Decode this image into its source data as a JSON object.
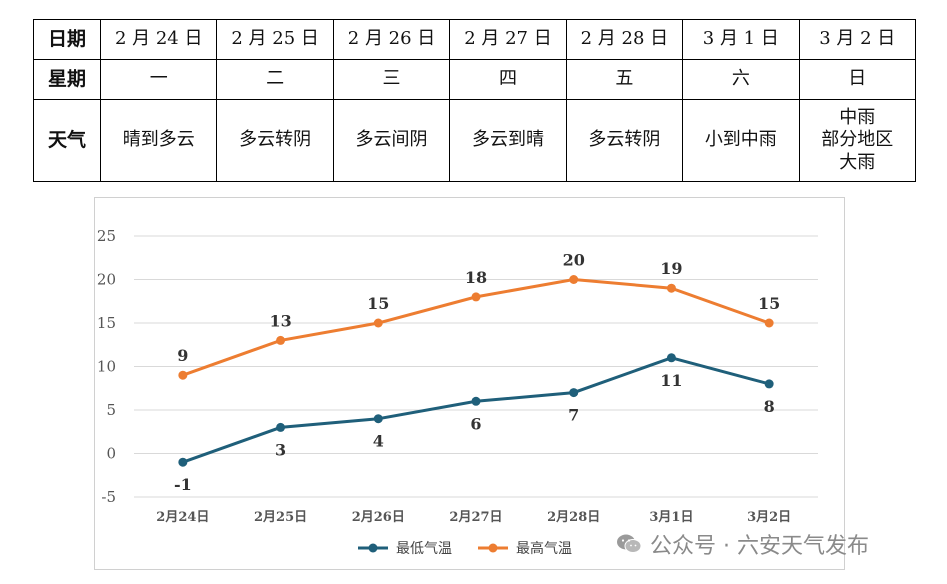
{
  "table": {
    "row_headers": [
      "日期",
      "星期",
      "天气"
    ],
    "dates": [
      "2 月 24 日",
      "2 月 25 日",
      "2 月 26 日",
      "2 月 27 日",
      "2 月 28 日",
      "3 月 1 日",
      "3 月 2 日"
    ],
    "weekdays": [
      "一",
      "二",
      "三",
      "四",
      "五",
      "六",
      "日"
    ],
    "weather": [
      "晴到多云",
      "多云转阴",
      "多云间阴",
      "多云到晴",
      "多云转阴",
      "小到中雨",
      "中雨\n部分地区\n大雨"
    ]
  },
  "chart_data": {
    "type": "line",
    "categories": [
      "2月24日",
      "2月25日",
      "2月26日",
      "2月27日",
      "2月28日",
      "3月1日",
      "3月2日"
    ],
    "series": [
      {
        "name": "最低气温",
        "color": "#1f5f7a",
        "values": [
          -1,
          3,
          4,
          6,
          7,
          11,
          8
        ]
      },
      {
        "name": "最高气温",
        "color": "#ed7d31",
        "values": [
          9,
          13,
          15,
          18,
          20,
          19,
          15
        ]
      }
    ],
    "ylim": [
      -5,
      25
    ],
    "yticks": [
      -5,
      0,
      5,
      10,
      15,
      20,
      25
    ],
    "grid": true,
    "legend": "bottom"
  },
  "watermark": {
    "text": "公众号 · 六安天气发布",
    "icon": "wechat-icon"
  }
}
